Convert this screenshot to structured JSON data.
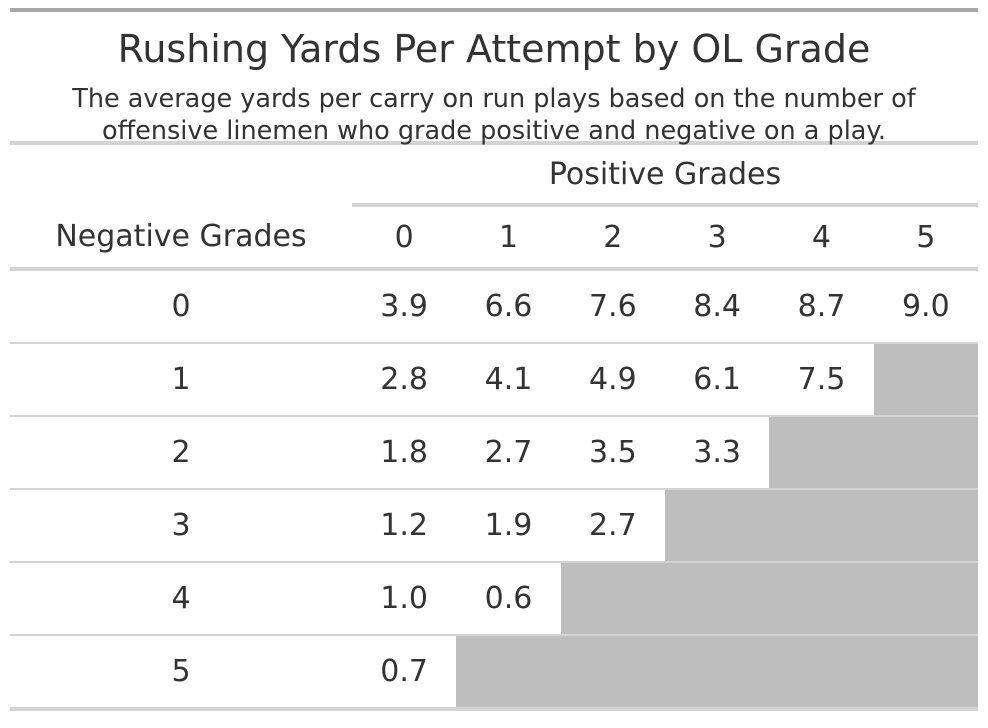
{
  "chart_data": {
    "type": "table",
    "title": "Rushing Yards Per Attempt by OL Grade",
    "subtitle_lines": [
      "The average yards per carry on run plays based on the number of",
      "offensive linemen who grade positive and negative on a play."
    ],
    "row_header": "Negative Grades",
    "column_spanner": "Positive Grades",
    "columns": [
      "0",
      "1",
      "2",
      "3",
      "4",
      "5"
    ],
    "rows": [
      {
        "label": "0",
        "values": [
          "3.9",
          "6.6",
          "7.6",
          "8.4",
          "8.7",
          "9.0"
        ]
      },
      {
        "label": "1",
        "values": [
          "2.8",
          "4.1",
          "4.9",
          "6.1",
          "7.5",
          null
        ]
      },
      {
        "label": "2",
        "values": [
          "1.8",
          "2.7",
          "3.5",
          "3.3",
          null,
          null
        ]
      },
      {
        "label": "3",
        "values": [
          "1.2",
          "1.9",
          "2.7",
          null,
          null,
          null
        ]
      },
      {
        "label": "4",
        "values": [
          "1.0",
          "0.6",
          null,
          null,
          null,
          null
        ]
      },
      {
        "label": "5",
        "values": [
          "0.7",
          null,
          null,
          null,
          null,
          null
        ]
      }
    ],
    "empty_cell_color": "#bebebe"
  }
}
